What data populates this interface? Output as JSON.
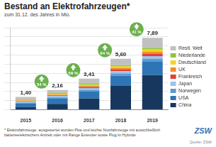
{
  "chart_data": {
    "type": "bar",
    "title": "Bestand an Elektrofahrzeugen*",
    "subtitle": "zum 31.12. des Jahres in Mio.",
    "categories": [
      "2015",
      "2016",
      "2017",
      "2018",
      "2019"
    ],
    "series": [
      {
        "name": "China",
        "color": "#17375e",
        "values": [
          0.31,
          0.65,
          1.23,
          2.61,
          3.81
        ]
      },
      {
        "name": "USA",
        "color": "#2e75b6",
        "values": [
          0.4,
          0.57,
          0.76,
          1.12,
          1.45
        ]
      },
      {
        "name": "Norwegen",
        "color": "#5b9bd5",
        "values": [
          0.08,
          0.13,
          0.18,
          0.25,
          0.33
        ]
      },
      {
        "name": "Japan",
        "color": "#9dc3e6",
        "values": [
          0.13,
          0.15,
          0.21,
          0.26,
          0.29
        ]
      },
      {
        "name": "Frankreich",
        "color": "#e0403a",
        "values": [
          0.05,
          0.08,
          0.12,
          0.17,
          0.23
        ]
      },
      {
        "name": "UK",
        "color": "#f28c28",
        "values": [
          0.05,
          0.09,
          0.13,
          0.19,
          0.26
        ]
      },
      {
        "name": "Deutschland",
        "color": "#f5d327",
        "values": [
          0.05,
          0.07,
          0.1,
          0.15,
          0.24
        ]
      },
      {
        "name": "Niederlande",
        "color": "#8cc63f",
        "values": [
          0.09,
          0.11,
          0.12,
          0.14,
          0.18
        ]
      },
      {
        "name": "Restl. Welt",
        "color": "#c0c0c0",
        "values": [
          0.24,
          0.31,
          0.56,
          0.71,
          1.1
        ]
      }
    ],
    "totals": [
      1.4,
      2.16,
      3.41,
      5.6,
      7.89
    ],
    "total_labels": [
      "1,40",
      "2,16",
      "3,41",
      "5,60",
      "7,89"
    ],
    "growth": [
      54,
      58,
      64,
      41
    ],
    "growth_labels": [
      "54 %",
      "58 %",
      "64 %",
      "41 %"
    ],
    "growth_color": "#6ab04c",
    "ylim": [
      0,
      9
    ],
    "yticks": [
      0,
      1,
      2,
      3,
      4,
      5,
      6,
      7,
      8,
      9
    ],
    "grid": true,
    "stacked": true,
    "legend": "right",
    "tick_labels": "x",
    "footnote": "* Elektrofahrzeuge: ausgewertet wurden Pkw und leichte Nutzfahrzeuge mit ausschließlich batterieelektrischem Antrieb oder mit Range Extender sowie Plug-In Hybride",
    "logo": "ZSW",
    "source": "Quelle: ZSW"
  }
}
